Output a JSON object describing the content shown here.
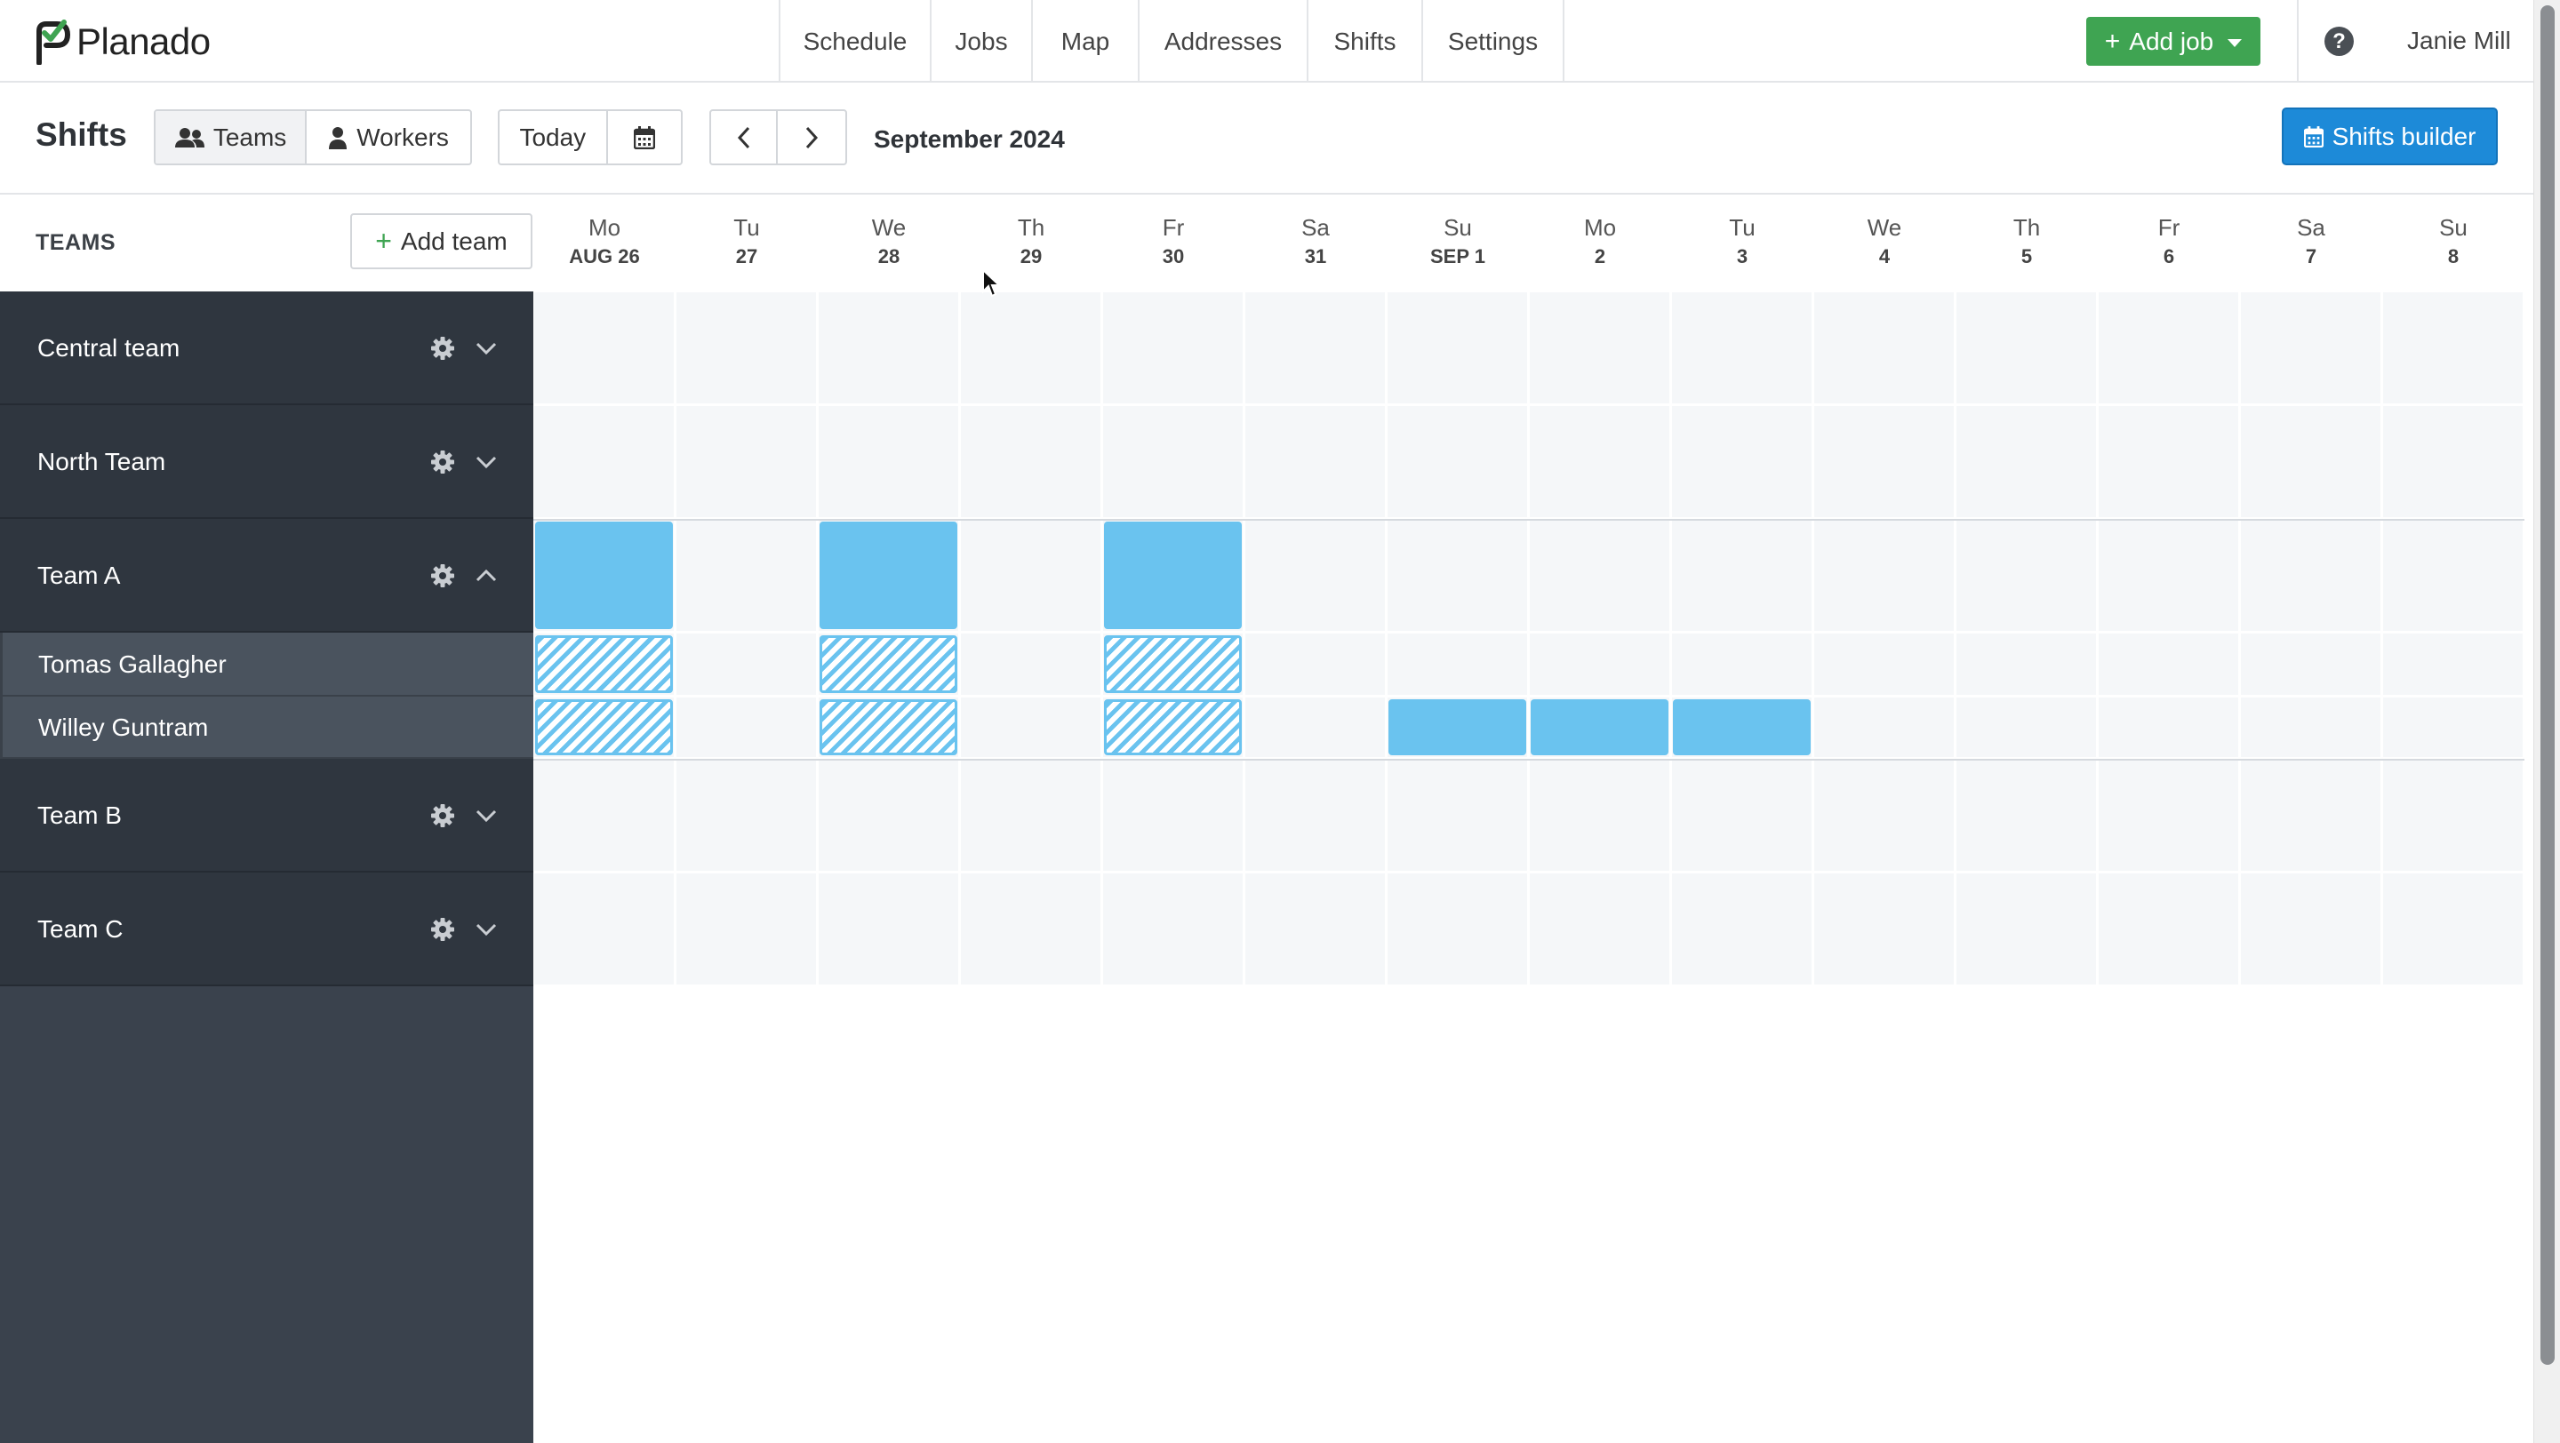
{
  "app": {
    "brand": "Planado"
  },
  "nav": {
    "items": [
      {
        "label": "Schedule",
        "width": 170
      },
      {
        "label": "Jobs",
        "width": 114
      },
      {
        "label": "Map",
        "width": 120
      },
      {
        "label": "Addresses",
        "width": 190
      },
      {
        "label": "Shifts",
        "width": 129
      },
      {
        "label": "Settings",
        "width": 159
      }
    ],
    "add_job_label": "Add job",
    "help_icon": "?",
    "user_name": "Janie Mill"
  },
  "toolbar": {
    "title": "Shifts",
    "view_toggle": [
      {
        "label": "Teams",
        "icon": "users-icon",
        "active": true
      },
      {
        "label": "Workers",
        "icon": "user-icon",
        "active": false
      }
    ],
    "today_label": "Today",
    "month_label": "September 2024",
    "shifts_builder_label": "Shifts builder"
  },
  "teams_panel": {
    "header_label": "TEAMS",
    "add_team_label": "Add team",
    "teams": [
      {
        "name": "Central team",
        "expanded": false
      },
      {
        "name": "North Team",
        "expanded": false
      },
      {
        "name": "Team A",
        "expanded": true,
        "workers": [
          "Tomas Gallagher",
          "Willey Guntram"
        ]
      },
      {
        "name": "Team B",
        "expanded": false
      },
      {
        "name": "Team C",
        "expanded": false
      }
    ]
  },
  "days": [
    {
      "name": "Mo",
      "date": "AUG 26"
    },
    {
      "name": "Tu",
      "date": "27"
    },
    {
      "name": "We",
      "date": "28"
    },
    {
      "name": "Th",
      "date": "29"
    },
    {
      "name": "Fr",
      "date": "30"
    },
    {
      "name": "Sa",
      "date": "31"
    },
    {
      "name": "Su",
      "date": "SEP 1"
    },
    {
      "name": "Mo",
      "date": "2"
    },
    {
      "name": "Tu",
      "date": "3"
    },
    {
      "name": "We",
      "date": "4"
    },
    {
      "name": "Th",
      "date": "5"
    },
    {
      "name": "Fr",
      "date": "6"
    },
    {
      "name": "Sa",
      "date": "7"
    },
    {
      "name": "Su",
      "date": "8"
    }
  ],
  "shifts": {
    "team_a": [
      0,
      2,
      4
    ],
    "tomas_gallagher_hatched": [
      0,
      2,
      4
    ],
    "willey_guntram_hatched": [
      0,
      2,
      4
    ],
    "willey_guntram_solid": [
      6,
      7,
      8
    ]
  },
  "colors": {
    "accent_green": "#3fa452",
    "primary_blue": "#1d8ad8",
    "shift_blue": "#6ac3ef",
    "sidebar_dark": "#2f363f"
  }
}
